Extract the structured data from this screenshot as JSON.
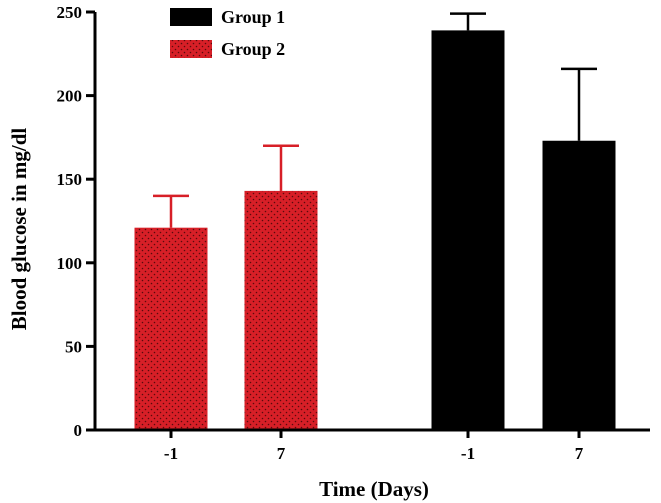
{
  "chart_data": {
    "type": "bar",
    "title": "",
    "xlabel": "Time (Days)",
    "ylabel": "Blood glucose in mg/dl",
    "ylim": [
      0,
      250
    ],
    "yticks": [
      0,
      50,
      100,
      150,
      200,
      250
    ],
    "grid": false,
    "legend_position": "top-left",
    "error_bars": "upper only",
    "bars": [
      {
        "group": "Group 2",
        "category": "-1",
        "value": 121,
        "error": 19
      },
      {
        "group": "Group 2",
        "category": "7",
        "value": 143,
        "error": 27
      },
      {
        "group": "Group 1",
        "category": "-1",
        "value": 239,
        "error": 10
      },
      {
        "group": "Group 1",
        "category": "7",
        "value": 173,
        "error": 43
      }
    ],
    "legend": [
      {
        "name": "Group 1",
        "color": "#000000",
        "pattern": "solid"
      },
      {
        "name": "Group 2",
        "color": "#d71f27",
        "pattern": "dotted"
      }
    ]
  }
}
